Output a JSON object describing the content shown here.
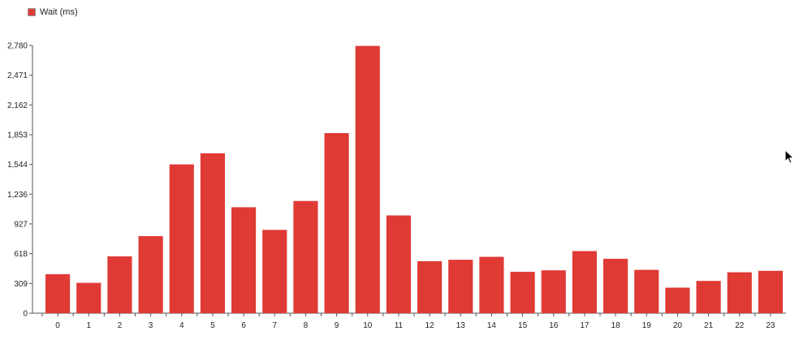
{
  "legend": {
    "label": "Wait (ms)",
    "color": "#e03a35"
  },
  "chart_data": {
    "type": "bar",
    "title": "",
    "xlabel": "",
    "ylabel": "",
    "categories": [
      "0",
      "1",
      "2",
      "3",
      "4",
      "5",
      "6",
      "7",
      "8",
      "9",
      "10",
      "11",
      "12",
      "13",
      "14",
      "15",
      "16",
      "17",
      "18",
      "19",
      "20",
      "21",
      "22",
      "23"
    ],
    "series": [
      {
        "name": "Wait (ms)",
        "color": "#e03a35",
        "values": [
          405,
          315,
          590,
          800,
          1545,
          1660,
          1100,
          865,
          1165,
          1870,
          2775,
          1015,
          540,
          555,
          585,
          430,
          445,
          645,
          565,
          450,
          265,
          335,
          425,
          440
        ]
      }
    ],
    "ylim": [
      0,
      2780
    ],
    "yticks": [
      {
        "value": 0,
        "label": "0"
      },
      {
        "value": 309,
        "label": "309"
      },
      {
        "value": 618,
        "label": "618"
      },
      {
        "value": 927,
        "label": "927"
      },
      {
        "value": 1236,
        "label": "1,236"
      },
      {
        "value": 1544,
        "label": "1,544"
      },
      {
        "value": 1853,
        "label": "1,853"
      },
      {
        "value": 2162,
        "label": "2,162"
      },
      {
        "value": 2471,
        "label": "2,471"
      },
      {
        "value": 2780,
        "label": "2,780"
      }
    ],
    "grid": false,
    "legend_position": "top-left"
  }
}
